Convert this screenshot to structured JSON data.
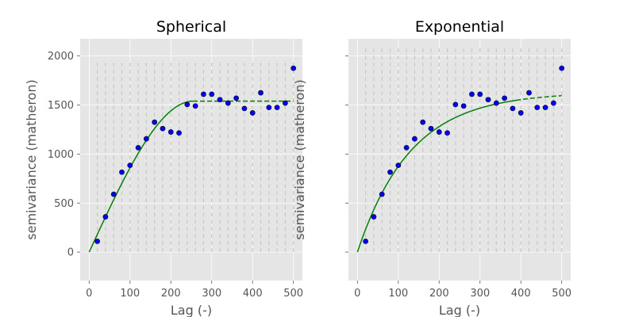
{
  "colors": {
    "plot_background": "#e5e5e5",
    "gridline": "#ffffff",
    "bin_marker": "#c8c8c8",
    "point_fill": "#0000ff",
    "point_edge": "#0a0a40",
    "model_line": "#008000",
    "tick_text": "#555555"
  },
  "chart_data": [
    {
      "type": "scatter",
      "title": "Spherical",
      "xlabel": "Lag (-)",
      "ylabel": "semivariance (matheron)",
      "xlim": [
        -22,
        522
      ],
      "ylim": [
        -290,
        2175
      ],
      "xticks": [
        0,
        100,
        200,
        300,
        400,
        500
      ],
      "xtick_labels": [
        "0",
        "100",
        "200",
        "300",
        "400",
        "500"
      ],
      "yticks": [
        0,
        500,
        1000,
        1500,
        2000
      ],
      "ytick_labels": [
        "0",
        "500",
        "1000",
        "1500",
        "2000"
      ],
      "grid": true,
      "bin_edges": [
        20,
        40,
        60,
        80,
        100,
        120,
        140,
        160,
        180,
        200,
        220,
        240,
        260,
        280,
        300,
        320,
        340,
        360,
        380,
        400,
        420,
        440,
        460,
        480,
        500
      ],
      "bin_marker_range": [
        0,
        1950
      ],
      "series": [
        {
          "kind": "points",
          "x": [
            20,
            40,
            60,
            80,
            100,
            120,
            140,
            160,
            180,
            200,
            220,
            240,
            260,
            280,
            300,
            320,
            340,
            360,
            380,
            400,
            420,
            440,
            460,
            480,
            500
          ],
          "values": [
            110,
            360,
            590,
            815,
            885,
            1065,
            1155,
            1325,
            1260,
            1225,
            1215,
            1505,
            1490,
            1610,
            1610,
            1555,
            1520,
            1570,
            1465,
            1420,
            1625,
            1475,
            1475,
            1520,
            1875
          ]
        },
        {
          "kind": "model",
          "model": "spherical",
          "style": "solid then dashed",
          "nugget": 0,
          "sill": 1540,
          "range": 255,
          "x_max": 500
        }
      ]
    },
    {
      "type": "scatter",
      "title": "Exponential",
      "xlabel": "Lag (-)",
      "ylabel": "semivariance (matheron)",
      "xlim": [
        -22,
        522
      ],
      "ylim": [
        -290,
        2175
      ],
      "xticks": [
        0,
        100,
        200,
        300,
        400,
        500
      ],
      "xtick_labels": [
        "0",
        "100",
        "200",
        "300",
        "400",
        "500"
      ],
      "yticks": [
        0,
        500,
        1000,
        1500,
        2000
      ],
      "ytick_labels": [],
      "grid": true,
      "bin_edges": [
        20,
        40,
        60,
        80,
        100,
        120,
        140,
        160,
        180,
        200,
        220,
        240,
        260,
        280,
        300,
        320,
        340,
        360,
        380,
        400,
        420,
        440,
        460,
        480,
        500
      ],
      "bin_marker_range": [
        0,
        2090
      ],
      "series": [
        {
          "kind": "points",
          "x": [
            20,
            40,
            60,
            80,
            100,
            120,
            140,
            160,
            180,
            200,
            220,
            240,
            260,
            280,
            300,
            320,
            340,
            360,
            380,
            400,
            420,
            440,
            460,
            480,
            500
          ],
          "values": [
            110,
            360,
            590,
            815,
            885,
            1065,
            1155,
            1325,
            1260,
            1225,
            1215,
            1505,
            1490,
            1610,
            1610,
            1555,
            1520,
            1570,
            1465,
            1420,
            1625,
            1475,
            1475,
            1520,
            1875
          ]
        },
        {
          "kind": "model",
          "model": "exponential",
          "style": "solid then dashed",
          "nugget": 0,
          "sill": 1630,
          "range": 390,
          "x_max": 500
        }
      ]
    }
  ]
}
